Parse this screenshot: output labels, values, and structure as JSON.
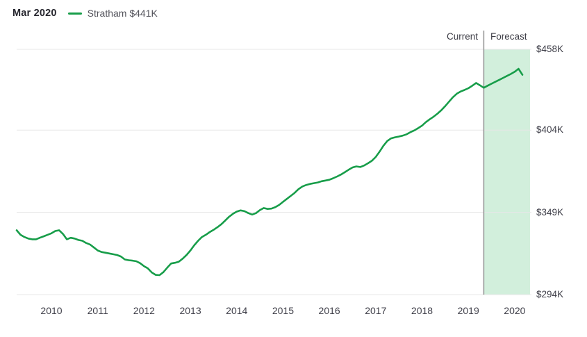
{
  "header": {
    "date_label": "Mar 2020",
    "legend": {
      "label": "Stratham $441K",
      "series_name": "Stratham",
      "value": "$441K",
      "color": "#179d49"
    }
  },
  "annotations": {
    "current_label": "Current",
    "forecast_label": "Forecast"
  },
  "colors": {
    "line_green": "#179d49",
    "forecast_band": "#d2efdc",
    "gridline": "#e7e7e7",
    "divider": "#999999",
    "text_dark": "#26262e",
    "text_gray": "#54545c"
  },
  "chart_data": {
    "type": "line",
    "title": "",
    "xlabel": "",
    "ylabel": "",
    "frequency": "monthly",
    "x_unit": "decimal_year",
    "start": "2009-04",
    "end": "2020-03",
    "grid": true,
    "legend_position": "top-left",
    "xlim": [
      2009.25,
      2020.167
    ],
    "ylim": [
      294,
      458
    ],
    "forecast_start": 2019.333,
    "forecast_region_color": "#d2efdc",
    "divider_color": "#999999",
    "grid_color": "#e7e7e7",
    "y_ticks": [
      {
        "label": "$458K",
        "value": 458
      },
      {
        "label": "$404K",
        "value": 404
      },
      {
        "label": "$349K",
        "value": 349
      },
      {
        "label": "$294K",
        "value": 294
      }
    ],
    "x_ticks": [
      {
        "label": "2010",
        "value": 2010
      },
      {
        "label": "2011",
        "value": 2011
      },
      {
        "label": "2012",
        "value": 2012
      },
      {
        "label": "2013",
        "value": 2013
      },
      {
        "label": "2014",
        "value": 2014
      },
      {
        "label": "2015",
        "value": 2015
      },
      {
        "label": "2016",
        "value": 2016
      },
      {
        "label": "2017",
        "value": 2017
      },
      {
        "label": "2018",
        "value": 2018
      },
      {
        "label": "2019",
        "value": 2019
      },
      {
        "label": "2020",
        "value": 2020
      }
    ],
    "series": [
      {
        "name": "Stratham",
        "color": "#179d49",
        "unit": "USD thousands",
        "points": [
          [
            2009.25,
            337
          ],
          [
            2009.333,
            334
          ],
          [
            2009.417,
            332.5
          ],
          [
            2009.5,
            331.5
          ],
          [
            2009.583,
            331
          ],
          [
            2009.667,
            331
          ],
          [
            2009.75,
            332
          ],
          [
            2009.833,
            333
          ],
          [
            2009.917,
            334
          ],
          [
            2010.0,
            335
          ],
          [
            2010.083,
            336.5
          ],
          [
            2010.167,
            337
          ],
          [
            2010.25,
            334.5
          ],
          [
            2010.333,
            331
          ],
          [
            2010.417,
            332
          ],
          [
            2010.5,
            331.5
          ],
          [
            2010.583,
            330.5
          ],
          [
            2010.667,
            330
          ],
          [
            2010.75,
            328.5
          ],
          [
            2010.833,
            327.5
          ],
          [
            2010.917,
            325.5
          ],
          [
            2011.0,
            323.5
          ],
          [
            2011.083,
            322.5
          ],
          [
            2011.167,
            322
          ],
          [
            2011.25,
            321.5
          ],
          [
            2011.333,
            321
          ],
          [
            2011.417,
            320.5
          ],
          [
            2011.5,
            319.5
          ],
          [
            2011.583,
            317.5
          ],
          [
            2011.667,
            317
          ],
          [
            2011.75,
            316.7
          ],
          [
            2011.833,
            316.3
          ],
          [
            2011.917,
            315
          ],
          [
            2012.0,
            313
          ],
          [
            2012.083,
            311.5
          ],
          [
            2012.167,
            308.8
          ],
          [
            2012.25,
            307.2
          ],
          [
            2012.333,
            307
          ],
          [
            2012.417,
            309
          ],
          [
            2012.5,
            312
          ],
          [
            2012.583,
            314.8
          ],
          [
            2012.667,
            315.3
          ],
          [
            2012.75,
            316
          ],
          [
            2012.833,
            318
          ],
          [
            2012.917,
            320.5
          ],
          [
            2013.0,
            323.5
          ],
          [
            2013.083,
            327
          ],
          [
            2013.167,
            330
          ],
          [
            2013.25,
            332.5
          ],
          [
            2013.333,
            334
          ],
          [
            2013.417,
            335.8
          ],
          [
            2013.5,
            337.3
          ],
          [
            2013.583,
            339
          ],
          [
            2013.667,
            341
          ],
          [
            2013.75,
            343.5
          ],
          [
            2013.833,
            346
          ],
          [
            2013.917,
            348
          ],
          [
            2014.0,
            349.5
          ],
          [
            2014.083,
            350.3
          ],
          [
            2014.167,
            349.8
          ],
          [
            2014.25,
            348.5
          ],
          [
            2014.333,
            347.5
          ],
          [
            2014.417,
            348.5
          ],
          [
            2014.5,
            350.5
          ],
          [
            2014.583,
            351.9
          ],
          [
            2014.667,
            351.3
          ],
          [
            2014.75,
            351.5
          ],
          [
            2014.833,
            352.5
          ],
          [
            2014.917,
            354
          ],
          [
            2015.0,
            356
          ],
          [
            2015.083,
            358
          ],
          [
            2015.167,
            360
          ],
          [
            2015.25,
            362
          ],
          [
            2015.333,
            364.5
          ],
          [
            2015.417,
            366.3
          ],
          [
            2015.5,
            367.3
          ],
          [
            2015.583,
            368
          ],
          [
            2015.667,
            368.5
          ],
          [
            2015.75,
            369
          ],
          [
            2015.833,
            369.8
          ],
          [
            2015.917,
            370.3
          ],
          [
            2016.0,
            370.8
          ],
          [
            2016.083,
            371.8
          ],
          [
            2016.167,
            373
          ],
          [
            2016.25,
            374.3
          ],
          [
            2016.333,
            375.8
          ],
          [
            2016.417,
            377.5
          ],
          [
            2016.5,
            379
          ],
          [
            2016.583,
            379.7
          ],
          [
            2016.667,
            379.3
          ],
          [
            2016.75,
            380.3
          ],
          [
            2016.833,
            381.8
          ],
          [
            2016.917,
            383.5
          ],
          [
            2017.0,
            386
          ],
          [
            2017.083,
            389.5
          ],
          [
            2017.167,
            393.5
          ],
          [
            2017.25,
            396.7
          ],
          [
            2017.333,
            398.5
          ],
          [
            2017.417,
            399.2
          ],
          [
            2017.5,
            399.7
          ],
          [
            2017.583,
            400.3
          ],
          [
            2017.667,
            401.2
          ],
          [
            2017.75,
            402.6
          ],
          [
            2017.833,
            403.8
          ],
          [
            2017.917,
            405.3
          ],
          [
            2018.0,
            407
          ],
          [
            2018.083,
            409.3
          ],
          [
            2018.167,
            411.2
          ],
          [
            2018.25,
            413
          ],
          [
            2018.333,
            415
          ],
          [
            2018.417,
            417.3
          ],
          [
            2018.5,
            420
          ],
          [
            2018.583,
            423
          ],
          [
            2018.667,
            426
          ],
          [
            2018.75,
            428.3
          ],
          [
            2018.833,
            429.8
          ],
          [
            2018.917,
            430.8
          ],
          [
            2019.0,
            432
          ],
          [
            2019.083,
            433.6
          ],
          [
            2019.167,
            435.5
          ],
          [
            2019.25,
            434
          ],
          [
            2019.333,
            432.3
          ],
          [
            2019.417,
            433.7
          ],
          [
            2019.5,
            435
          ],
          [
            2019.583,
            436.3
          ],
          [
            2019.667,
            437.6
          ],
          [
            2019.75,
            438.9
          ],
          [
            2019.833,
            440.2
          ],
          [
            2019.917,
            441.5
          ],
          [
            2020.0,
            443
          ],
          [
            2020.083,
            445
          ],
          [
            2020.167,
            441
          ]
        ]
      }
    ]
  }
}
